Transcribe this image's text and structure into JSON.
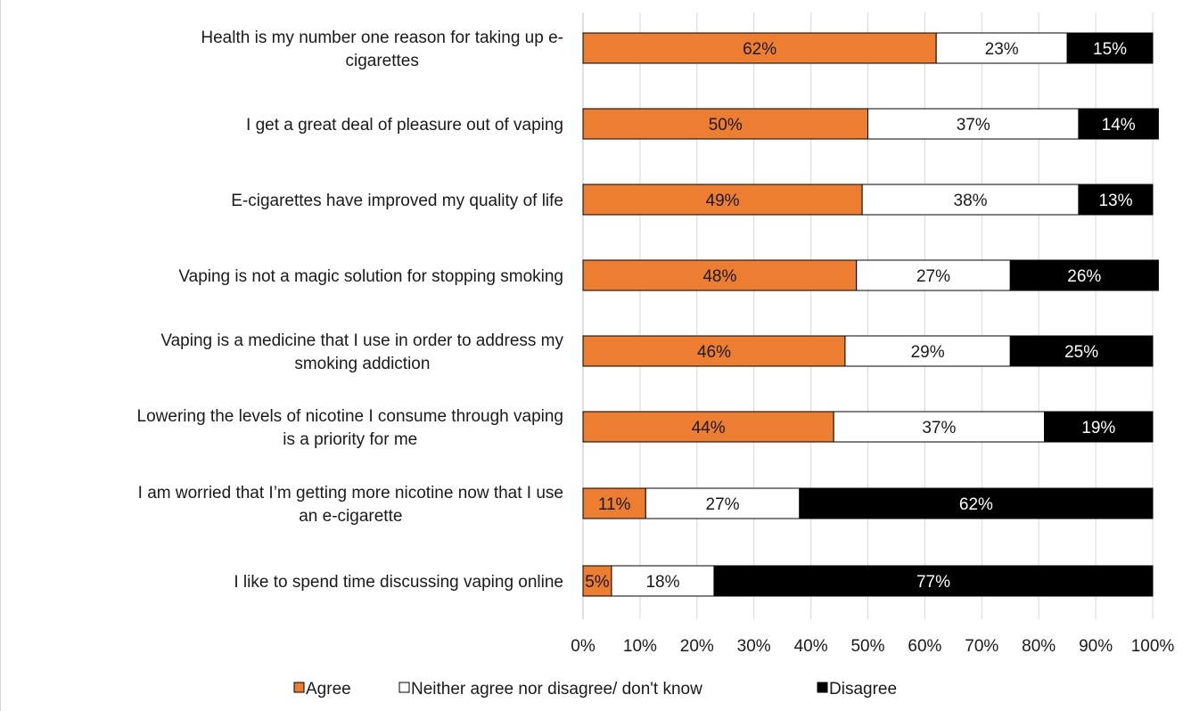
{
  "chart_data": {
    "type": "bar",
    "orientation": "horizontal",
    "stacked": "percent",
    "categories": [
      [
        "Health is my number one reason for taking up e-",
        "cigarettes"
      ],
      [
        "I get a great deal of pleasure out of vaping"
      ],
      [
        "E-cigarettes have improved my quality of life"
      ],
      [
        "Vaping is not a magic solution for stopping smoking"
      ],
      [
        "Vaping is a medicine that I use in order to address my",
        "smoking addiction"
      ],
      [
        "Lowering the levels of nicotine I consume through vaping",
        "is a priority for me"
      ],
      [
        "I am worried that I’m getting more nicotine now that I use",
        "an e-cigarette"
      ],
      [
        "I like to spend time discussing vaping online"
      ]
    ],
    "series": [
      {
        "name": "Agree",
        "color": "#ed7d31",
        "label_color": "#1a1a1a",
        "values": [
          62,
          50,
          49,
          48,
          46,
          44,
          11,
          5
        ]
      },
      {
        "name": "Neither agree nor disagree/ don't know",
        "color": "#ffffff",
        "label_color": "#1a1a1a",
        "values": [
          23,
          37,
          38,
          27,
          29,
          37,
          27,
          18
        ]
      },
      {
        "name": "Disagree",
        "color": "#000000",
        "label_color": "#ffffff",
        "values": [
          15,
          14,
          13,
          26,
          25,
          19,
          62,
          77
        ]
      }
    ],
    "data_labels": [
      [
        "62%",
        "23%",
        "15%"
      ],
      [
        "50%",
        "37%",
        "14%"
      ],
      [
        "49%",
        "38%",
        "13%"
      ],
      [
        "48%",
        "27%",
        "26%"
      ],
      [
        "46%",
        "29%",
        "25%"
      ],
      [
        "44%",
        "37%",
        "19%"
      ],
      [
        "11%",
        "27%",
        "62%"
      ],
      [
        "5%",
        "18%",
        "77%"
      ]
    ],
    "xlim": [
      0,
      100
    ],
    "x_ticks": [
      "0%",
      "10%",
      "20%",
      "30%",
      "40%",
      "50%",
      "60%",
      "70%",
      "80%",
      "90%",
      "100%"
    ],
    "grid": "vertical",
    "legend_position": "bottom"
  }
}
